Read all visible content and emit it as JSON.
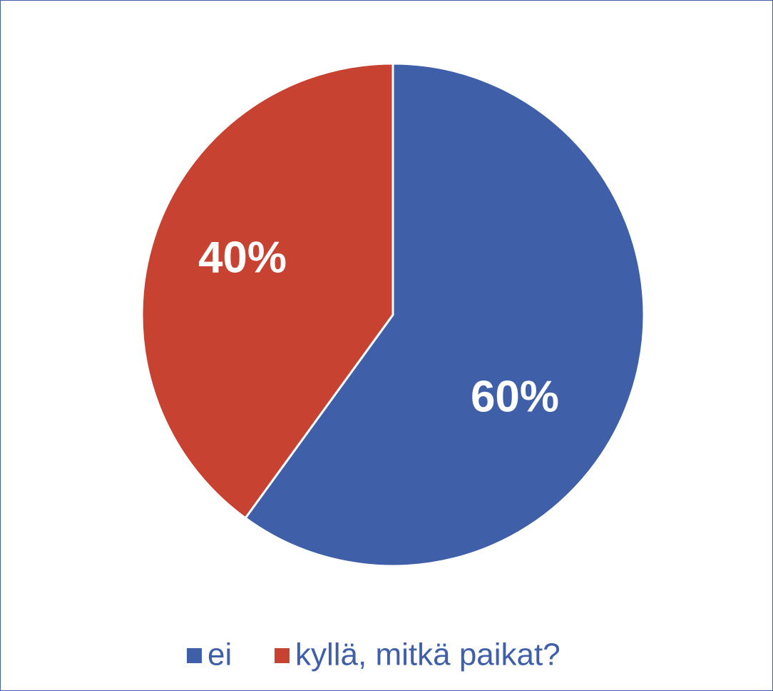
{
  "chart_data": {
    "type": "pie",
    "categories": [
      "ei",
      "kyllä, mitkä paikat?"
    ],
    "values": [
      60,
      40
    ],
    "value_labels": [
      "60%",
      "40%"
    ],
    "colors": [
      "#3f5fa8",
      "#c84232"
    ],
    "legend": "bottom"
  }
}
